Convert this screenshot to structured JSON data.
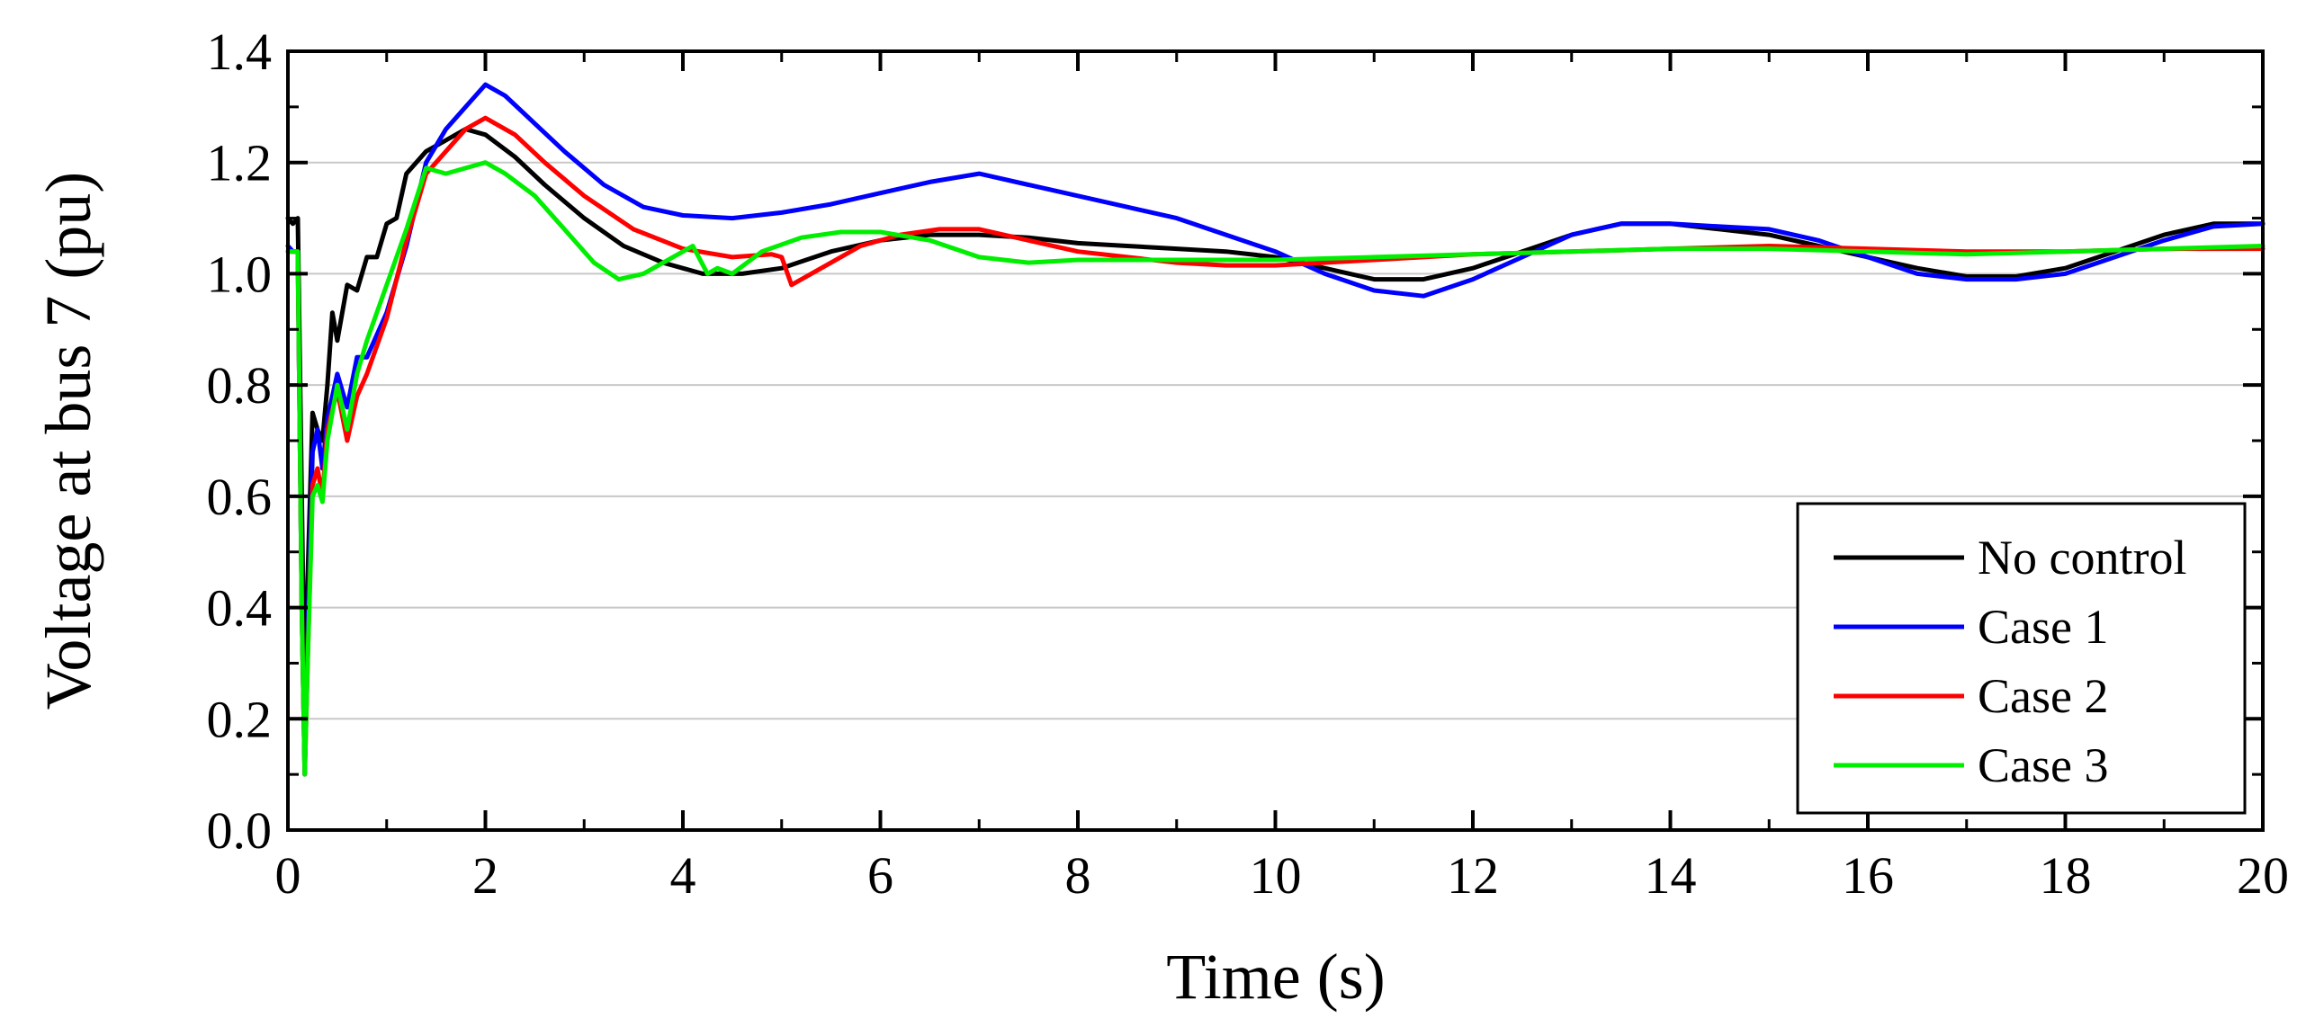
{
  "chart_data": {
    "type": "line",
    "xlabel": "Time (s)",
    "ylabel": "Voltage at bus 7 (pu)",
    "xlim": [
      0,
      20
    ],
    "ylim": [
      0,
      1.4
    ],
    "xticks": [
      "0",
      "2",
      "4",
      "6",
      "8",
      "10",
      "12",
      "14",
      "16",
      "18",
      "20"
    ],
    "yticks": [
      "0.0",
      "0.2",
      "0.4",
      "0.6",
      "0.8",
      "1.0",
      "1.2",
      "1.4"
    ],
    "grid": "horizontal",
    "legend_position": "bottom-right",
    "series": [
      {
        "name": "No control",
        "color": "#000000",
        "points": [
          [
            0,
            1.1
          ],
          [
            0.05,
            1.09
          ],
          [
            0.1,
            1.1
          ],
          [
            0.14,
            0.6
          ],
          [
            0.17,
            0.2
          ],
          [
            0.2,
            0.45
          ],
          [
            0.25,
            0.75
          ],
          [
            0.3,
            0.72
          ],
          [
            0.35,
            0.7
          ],
          [
            0.4,
            0.8
          ],
          [
            0.45,
            0.93
          ],
          [
            0.5,
            0.88
          ],
          [
            0.6,
            0.98
          ],
          [
            0.7,
            0.97
          ],
          [
            0.8,
            1.03
          ],
          [
            0.9,
            1.03
          ],
          [
            1.0,
            1.09
          ],
          [
            1.1,
            1.1
          ],
          [
            1.2,
            1.18
          ],
          [
            1.4,
            1.22
          ],
          [
            1.6,
            1.24
          ],
          [
            1.8,
            1.26
          ],
          [
            2.0,
            1.25
          ],
          [
            2.3,
            1.21
          ],
          [
            2.6,
            1.16
          ],
          [
            3.0,
            1.1
          ],
          [
            3.4,
            1.05
          ],
          [
            3.8,
            1.02
          ],
          [
            4.2,
            1.0
          ],
          [
            4.6,
            1.0
          ],
          [
            5.0,
            1.01
          ],
          [
            5.5,
            1.04
          ],
          [
            6.0,
            1.06
          ],
          [
            6.5,
            1.07
          ],
          [
            7.0,
            1.07
          ],
          [
            7.5,
            1.065
          ],
          [
            8.0,
            1.055
          ],
          [
            8.5,
            1.05
          ],
          [
            9.0,
            1.045
          ],
          [
            9.5,
            1.04
          ],
          [
            10.0,
            1.03
          ],
          [
            10.5,
            1.01
          ],
          [
            11.0,
            0.99
          ],
          [
            11.5,
            0.99
          ],
          [
            12.0,
            1.01
          ],
          [
            12.5,
            1.04
          ],
          [
            13.0,
            1.07
          ],
          [
            13.5,
            1.09
          ],
          [
            14.0,
            1.09
          ],
          [
            14.5,
            1.08
          ],
          [
            15.0,
            1.07
          ],
          [
            15.5,
            1.05
          ],
          [
            16.0,
            1.03
          ],
          [
            16.5,
            1.01
          ],
          [
            17.0,
            0.995
          ],
          [
            17.5,
            0.995
          ],
          [
            18.0,
            1.01
          ],
          [
            18.5,
            1.04
          ],
          [
            19.0,
            1.07
          ],
          [
            19.5,
            1.09
          ],
          [
            20.0,
            1.09
          ]
        ]
      },
      {
        "name": "Case 1",
        "color": "#0000ff",
        "points": [
          [
            0,
            1.05
          ],
          [
            0.05,
            1.04
          ],
          [
            0.1,
            1.04
          ],
          [
            0.14,
            0.4
          ],
          [
            0.17,
            0.1
          ],
          [
            0.2,
            0.35
          ],
          [
            0.25,
            0.68
          ],
          [
            0.3,
            0.72
          ],
          [
            0.35,
            0.65
          ],
          [
            0.4,
            0.74
          ],
          [
            0.5,
            0.82
          ],
          [
            0.6,
            0.76
          ],
          [
            0.7,
            0.85
          ],
          [
            0.8,
            0.85
          ],
          [
            1.0,
            0.93
          ],
          [
            1.2,
            1.05
          ],
          [
            1.4,
            1.2
          ],
          [
            1.6,
            1.26
          ],
          [
            1.8,
            1.3
          ],
          [
            2.0,
            1.34
          ],
          [
            2.2,
            1.32
          ],
          [
            2.5,
            1.27
          ],
          [
            2.8,
            1.22
          ],
          [
            3.2,
            1.16
          ],
          [
            3.6,
            1.12
          ],
          [
            4.0,
            1.105
          ],
          [
            4.5,
            1.1
          ],
          [
            5.0,
            1.11
          ],
          [
            5.5,
            1.125
          ],
          [
            6.0,
            1.145
          ],
          [
            6.5,
            1.165
          ],
          [
            7.0,
            1.18
          ],
          [
            7.5,
            1.16
          ],
          [
            8.0,
            1.14
          ],
          [
            8.5,
            1.12
          ],
          [
            9.0,
            1.1
          ],
          [
            9.5,
            1.07
          ],
          [
            10.0,
            1.04
          ],
          [
            10.5,
            1.0
          ],
          [
            11.0,
            0.97
          ],
          [
            11.5,
            0.96
          ],
          [
            12.0,
            0.99
          ],
          [
            12.5,
            1.03
          ],
          [
            13.0,
            1.07
          ],
          [
            13.5,
            1.09
          ],
          [
            14.0,
            1.09
          ],
          [
            14.5,
            1.085
          ],
          [
            15.0,
            1.08
          ],
          [
            15.5,
            1.06
          ],
          [
            16.0,
            1.03
          ],
          [
            16.5,
            1.0
          ],
          [
            17.0,
            0.99
          ],
          [
            17.5,
            0.99
          ],
          [
            18.0,
            1.0
          ],
          [
            18.5,
            1.03
          ],
          [
            19.0,
            1.06
          ],
          [
            19.5,
            1.085
          ],
          [
            20.0,
            1.09
          ]
        ]
      },
      {
        "name": "Case 2",
        "color": "#ff0000",
        "points": [
          [
            0,
            1.04
          ],
          [
            0.05,
            1.04
          ],
          [
            0.1,
            1.04
          ],
          [
            0.14,
            0.4
          ],
          [
            0.17,
            0.1
          ],
          [
            0.2,
            0.3
          ],
          [
            0.25,
            0.62
          ],
          [
            0.3,
            0.65
          ],
          [
            0.35,
            0.6
          ],
          [
            0.4,
            0.72
          ],
          [
            0.5,
            0.79
          ],
          [
            0.6,
            0.7
          ],
          [
            0.7,
            0.78
          ],
          [
            0.8,
            0.82
          ],
          [
            1.0,
            0.92
          ],
          [
            1.2,
            1.06
          ],
          [
            1.4,
            1.18
          ],
          [
            1.6,
            1.22
          ],
          [
            1.8,
            1.26
          ],
          [
            2.0,
            1.28
          ],
          [
            2.3,
            1.25
          ],
          [
            2.6,
            1.2
          ],
          [
            3.0,
            1.14
          ],
          [
            3.5,
            1.08
          ],
          [
            4.0,
            1.045
          ],
          [
            4.5,
            1.03
          ],
          [
            4.9,
            1.035
          ],
          [
            5.0,
            1.03
          ],
          [
            5.1,
            0.98
          ],
          [
            5.3,
            1.0
          ],
          [
            5.5,
            1.02
          ],
          [
            5.8,
            1.05
          ],
          [
            6.2,
            1.07
          ],
          [
            6.6,
            1.08
          ],
          [
            7.0,
            1.08
          ],
          [
            7.5,
            1.06
          ],
          [
            8.0,
            1.04
          ],
          [
            8.5,
            1.03
          ],
          [
            9.0,
            1.02
          ],
          [
            9.5,
            1.015
          ],
          [
            10.0,
            1.015
          ],
          [
            11.0,
            1.025
          ],
          [
            12.0,
            1.035
          ],
          [
            13.0,
            1.04
          ],
          [
            14.0,
            1.045
          ],
          [
            15.0,
            1.05
          ],
          [
            16.0,
            1.045
          ],
          [
            17.0,
            1.04
          ],
          [
            18.0,
            1.04
          ],
          [
            19.0,
            1.045
          ],
          [
            20.0,
            1.045
          ]
        ]
      },
      {
        "name": "Case 3",
        "color": "#00ee00",
        "points": [
          [
            0,
            1.04
          ],
          [
            0.05,
            1.04
          ],
          [
            0.1,
            1.04
          ],
          [
            0.14,
            0.4
          ],
          [
            0.17,
            0.1
          ],
          [
            0.2,
            0.3
          ],
          [
            0.25,
            0.6
          ],
          [
            0.3,
            0.62
          ],
          [
            0.35,
            0.59
          ],
          [
            0.4,
            0.7
          ],
          [
            0.5,
            0.8
          ],
          [
            0.6,
            0.72
          ],
          [
            0.7,
            0.82
          ],
          [
            0.8,
            0.88
          ],
          [
            1.0,
            0.98
          ],
          [
            1.2,
            1.08
          ],
          [
            1.4,
            1.19
          ],
          [
            1.6,
            1.18
          ],
          [
            1.8,
            1.19
          ],
          [
            2.0,
            1.2
          ],
          [
            2.2,
            1.18
          ],
          [
            2.5,
            1.14
          ],
          [
            2.8,
            1.08
          ],
          [
            3.1,
            1.02
          ],
          [
            3.35,
            0.99
          ],
          [
            3.6,
            1.0
          ],
          [
            3.9,
            1.03
          ],
          [
            4.1,
            1.05
          ],
          [
            4.25,
            1.0
          ],
          [
            4.35,
            1.01
          ],
          [
            4.5,
            1.0
          ],
          [
            4.8,
            1.04
          ],
          [
            5.2,
            1.065
          ],
          [
            5.6,
            1.075
          ],
          [
            6.0,
            1.075
          ],
          [
            6.5,
            1.06
          ],
          [
            7.0,
            1.03
          ],
          [
            7.5,
            1.02
          ],
          [
            8.0,
            1.025
          ],
          [
            9.0,
            1.025
          ],
          [
            10.0,
            1.025
          ],
          [
            11.0,
            1.03
          ],
          [
            12.0,
            1.035
          ],
          [
            13.0,
            1.04
          ],
          [
            14.0,
            1.045
          ],
          [
            15.0,
            1.045
          ],
          [
            16.0,
            1.04
          ],
          [
            17.0,
            1.035
          ],
          [
            18.0,
            1.04
          ],
          [
            19.0,
            1.045
          ],
          [
            20.0,
            1.05
          ]
        ]
      }
    ]
  }
}
